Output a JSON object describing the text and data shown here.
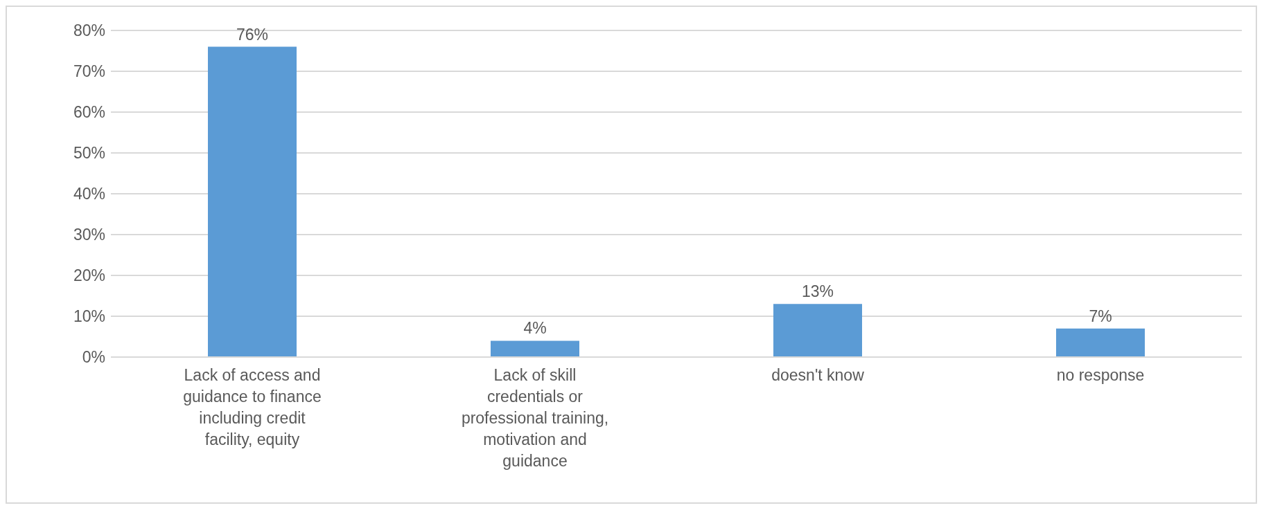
{
  "chart_data": {
    "type": "bar",
    "categories": [
      "Lack of access and guidance to finance including credit facility, equity",
      "Lack of skill credentials or professional training, motivation and guidance",
      "doesn't know",
      "no response"
    ],
    "values": [
      76,
      4,
      13,
      7
    ],
    "color": "#5b9bd5",
    "value_labels": [
      "76%",
      "4%",
      "13%",
      "7%"
    ],
    "ylim": [
      0,
      80
    ],
    "yticks": [
      {
        "value": 0,
        "label": "0%"
      },
      {
        "value": 10,
        "label": "10%"
      },
      {
        "value": 20,
        "label": "20%"
      },
      {
        "value": 30,
        "label": "30%"
      },
      {
        "value": 40,
        "label": "40%"
      },
      {
        "value": 50,
        "label": "50%"
      },
      {
        "value": 60,
        "label": "60%"
      },
      {
        "value": 70,
        "label": "70%"
      },
      {
        "value": 80,
        "label": "80%"
      }
    ],
    "grid": "y",
    "legend": false
  }
}
